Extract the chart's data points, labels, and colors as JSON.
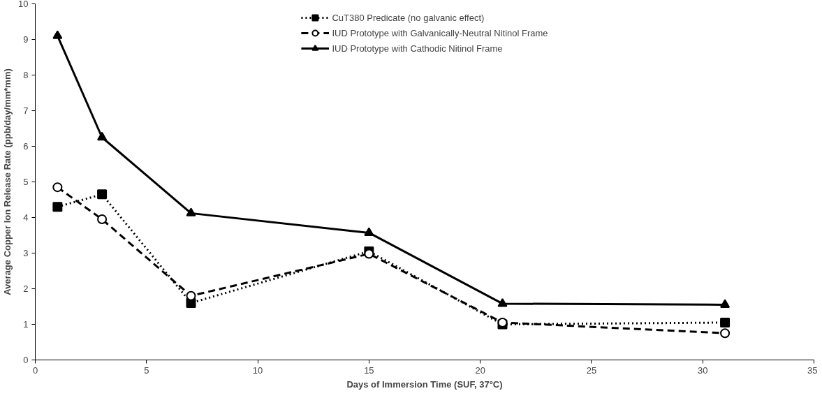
{
  "chart_data": {
    "type": "line",
    "xlabel": "Days of Immersion Time (SUF, 37°C)",
    "ylabel": "Average Copper Ion Release Rate (ppb/day/mm*mm)",
    "x": [
      1,
      3,
      7,
      15,
      21,
      31
    ],
    "series": [
      {
        "name": "CuT380 Predicate (no galvanic effect)",
        "color": "#000000",
        "values": [
          4.3,
          4.65,
          1.6,
          3.05,
          1.0,
          1.05
        ],
        "marker": "square",
        "line_style": "dotted"
      },
      {
        "name": "IUD Prototype with Galvanically-Neutral Nitinol Frame",
        "color": "#000000",
        "values": [
          4.85,
          3.95,
          1.8,
          2.98,
          1.05,
          0.75
        ],
        "marker": "circle",
        "line_style": "dashed"
      },
      {
        "name": "IUD Prototype with Cathodic Nitinol Frame",
        "color": "#000000",
        "values": [
          9.1,
          6.25,
          4.12,
          3.57,
          1.58,
          1.55
        ],
        "marker": "triangle",
        "line_style": "solid"
      }
    ],
    "xlim": [
      0,
      35
    ],
    "xticks": [
      0,
      5,
      10,
      15,
      20,
      25,
      30,
      35
    ],
    "ylim": [
      0,
      10
    ],
    "yticks": [
      0,
      1,
      2,
      3,
      4,
      5,
      6,
      7,
      8,
      9,
      10
    ],
    "grid": false,
    "legend": "top"
  }
}
